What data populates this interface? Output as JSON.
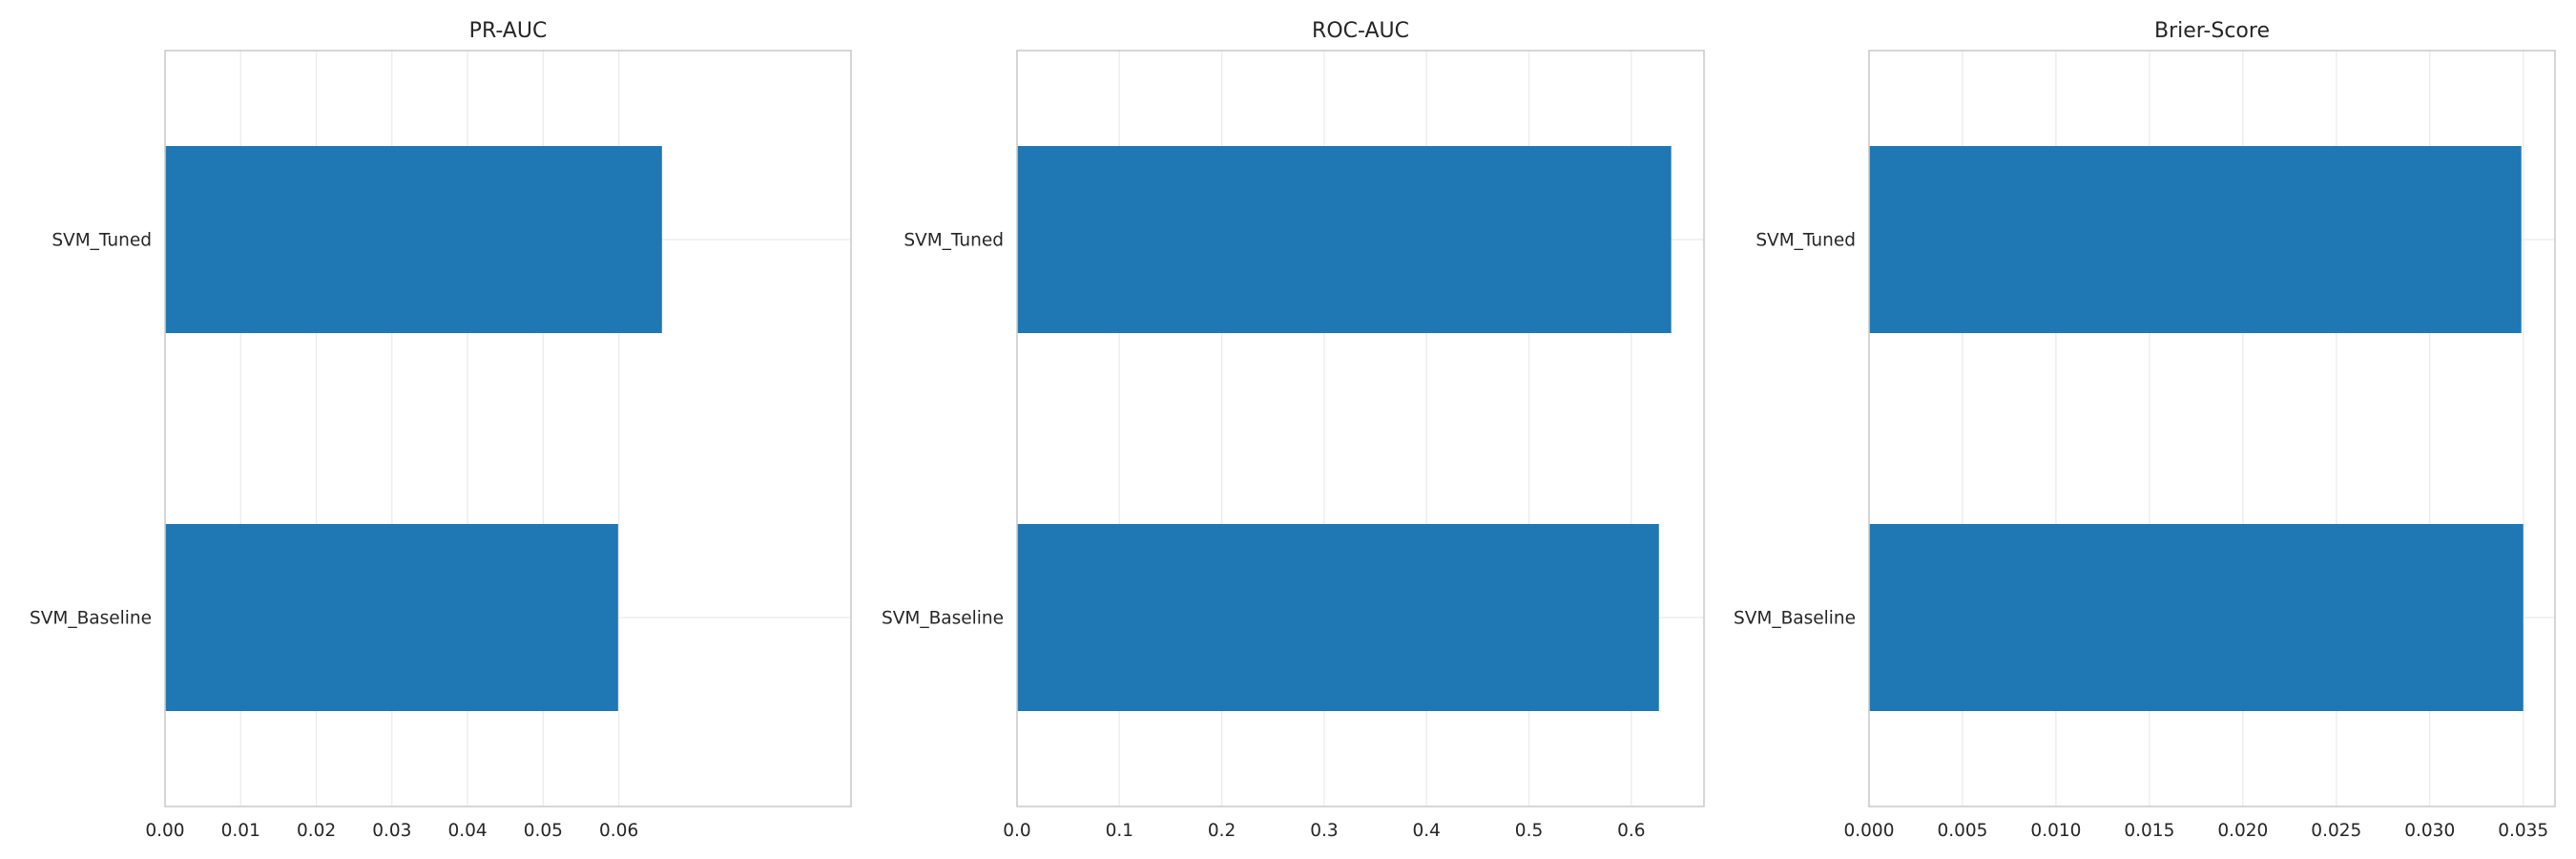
{
  "chart_data": [
    {
      "type": "bar",
      "orientation": "horizontal",
      "title": "PR-AUC",
      "categories": [
        "SVM_Tuned",
        "SVM_Baseline"
      ],
      "values": [
        0.0657,
        0.0599
      ],
      "xlim": [
        0,
        0.0907
      ],
      "xticks": [
        0,
        0.01,
        0.02,
        0.03,
        0.04,
        0.05,
        0.06
      ],
      "xtick_labels": [
        "0.00",
        "0.01",
        "0.02",
        "0.03",
        "0.04",
        "0.05",
        "0.06"
      ],
      "xlabel": "",
      "ylabel": "",
      "grid": true,
      "legend": false,
      "bar_color": "#1f77b4"
    },
    {
      "type": "bar",
      "orientation": "horizontal",
      "title": "ROC-AUC",
      "categories": [
        "SVM_Tuned",
        "SVM_Baseline"
      ],
      "values": [
        0.639,
        0.627
      ],
      "xlim": [
        0,
        0.671
      ],
      "xticks": [
        0,
        0.1,
        0.2,
        0.3,
        0.4,
        0.5,
        0.6
      ],
      "xtick_labels": [
        "0.0",
        "0.1",
        "0.2",
        "0.3",
        "0.4",
        "0.5",
        "0.6"
      ],
      "xlabel": "",
      "ylabel": "",
      "grid": true,
      "legend": false,
      "bar_color": "#1f77b4"
    },
    {
      "type": "bar",
      "orientation": "horizontal",
      "title": "Brier-Score",
      "categories": [
        "SVM_Tuned",
        "SVM_Baseline"
      ],
      "values": [
        0.0349,
        0.035
      ],
      "xlim": [
        0,
        0.0367
      ],
      "xticks": [
        0,
        0.005,
        0.01,
        0.015,
        0.02,
        0.025,
        0.03,
        0.035
      ],
      "xtick_labels": [
        "0.000",
        "0.005",
        "0.010",
        "0.015",
        "0.020",
        "0.025",
        "0.030",
        "0.035"
      ],
      "xlabel": "",
      "ylabel": "",
      "grid": true,
      "legend": false,
      "bar_color": "#1f77b4"
    }
  ]
}
